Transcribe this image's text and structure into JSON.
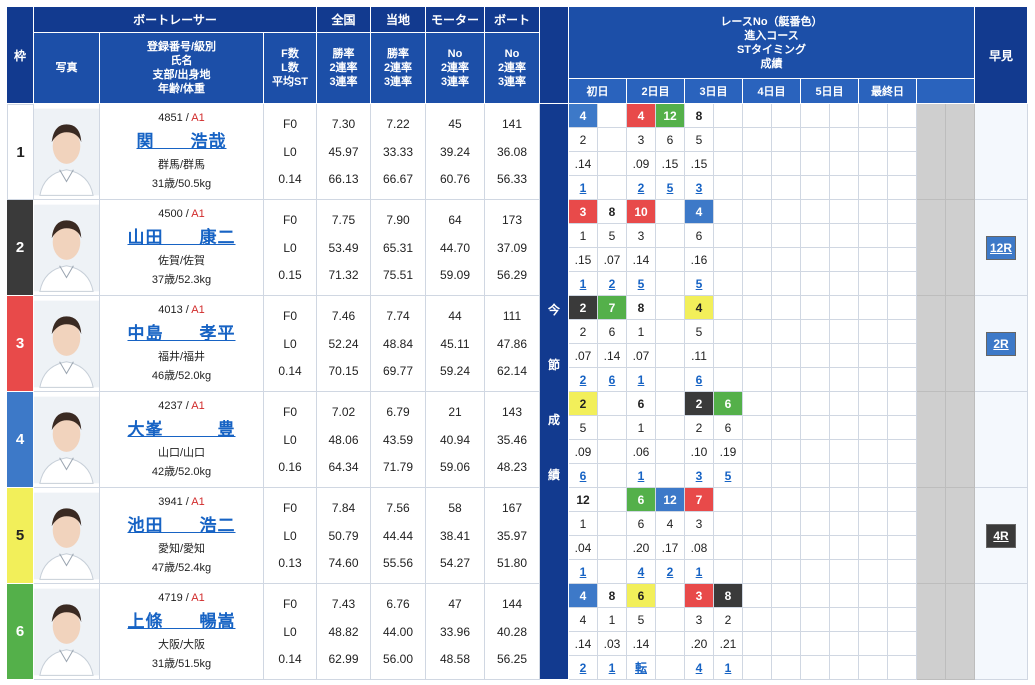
{
  "header": {
    "waku": "枠",
    "boat_racer": "ボートレーサー",
    "photo": "写真",
    "racer_info": [
      "登録番号/級別",
      "氏名",
      "支部/出身地",
      "年齢/体重"
    ],
    "fl": [
      "F数",
      "L数",
      "平均ST"
    ],
    "zenkoku": "全国",
    "touchi": "当地",
    "motor": "モーター",
    "boat": "ボート",
    "rates": [
      "勝率",
      "2連率",
      "3連率"
    ],
    "no_rates": [
      "No",
      "2連率",
      "3連率"
    ],
    "race_title": [
      "レースNo（艇番色）",
      "進入コース",
      "STタイミング",
      "成績"
    ],
    "days": [
      "初日",
      "2日目",
      "3日目",
      "4日目",
      "5日目",
      "最終日"
    ],
    "hayami": "早見",
    "konsetsu": [
      "今",
      "節",
      "成",
      "績"
    ]
  },
  "colors": {
    "1": "#ffffff",
    "2": "#3a3a3a",
    "3": "#e84a4a",
    "4": "#3d79c8",
    "5": "#f2ef5a",
    "6": "#54b04a"
  },
  "racers": [
    {
      "waku": "1",
      "id": "4851",
      "cls": "A1",
      "name": "関　　浩哉",
      "branch": "群馬/群馬",
      "age": "31歳/50.5kg",
      "f": "F0",
      "l": "L0",
      "st": "0.14",
      "zen": [
        "7.30",
        "45.97",
        "66.13"
      ],
      "tou": [
        "7.22",
        "33.33",
        "66.67"
      ],
      "mot": [
        "45",
        "39.24",
        "60.76"
      ],
      "bt": [
        "141",
        "36.08",
        "56.33"
      ],
      "races": [
        {
          "no": "4",
          "c": "2",
          "st": ".14",
          "res": "1"
        },
        {
          "no": "",
          "c": "",
          "st": "",
          "res": ""
        },
        {
          "no": "4",
          "c": "3",
          "st": ".09",
          "res": "2"
        },
        {
          "no": "12",
          "c": "6",
          "st": ".15",
          "res": "5"
        },
        {
          "no": "8",
          "c": "5",
          "st": ".15",
          "res": "3"
        },
        {
          "no": "",
          "c": "",
          "st": "",
          "res": ""
        }
      ],
      "hayami": ""
    },
    {
      "waku": "2",
      "id": "4500",
      "cls": "A1",
      "name": "山田　　康二",
      "branch": "佐賀/佐賀",
      "age": "37歳/52.3kg",
      "f": "F0",
      "l": "L0",
      "st": "0.15",
      "zen": [
        "7.75",
        "53.49",
        "71.32"
      ],
      "tou": [
        "7.90",
        "65.31",
        "75.51"
      ],
      "mot": [
        "64",
        "44.70",
        "59.09"
      ],
      "bt": [
        "173",
        "37.09",
        "56.29"
      ],
      "races": [
        {
          "no": "3",
          "c": "1",
          "st": ".15",
          "res": "1"
        },
        {
          "no": "8",
          "c": "5",
          "st": ".07",
          "res": "2"
        },
        {
          "no": "10",
          "c": "3",
          "st": ".14",
          "res": "5"
        },
        {
          "no": "",
          "c": "",
          "st": "",
          "res": ""
        },
        {
          "no": "4",
          "c": "6",
          "st": ".16",
          "res": "5"
        },
        {
          "no": "",
          "c": "",
          "st": "",
          "res": ""
        }
      ],
      "hayami": "12R"
    },
    {
      "waku": "3",
      "id": "4013",
      "cls": "A1",
      "name": "中島　　孝平",
      "branch": "福井/福井",
      "age": "46歳/52.0kg",
      "f": "F0",
      "l": "L0",
      "st": "0.14",
      "zen": [
        "7.46",
        "52.24",
        "70.15"
      ],
      "tou": [
        "7.74",
        "48.84",
        "69.77"
      ],
      "mot": [
        "44",
        "45.11",
        "59.24"
      ],
      "bt": [
        "111",
        "47.86",
        "62.14"
      ],
      "races": [
        {
          "no": "2",
          "c": "2",
          "st": ".07",
          "res": "2"
        },
        {
          "no": "7",
          "c": "6",
          "st": ".14",
          "res": "6"
        },
        {
          "no": "8",
          "c": "1",
          "st": ".07",
          "res": "1"
        },
        {
          "no": "",
          "c": "",
          "st": "",
          "res": ""
        },
        {
          "no": "4",
          "c": "5",
          "st": ".11",
          "res": "6"
        },
        {
          "no": "",
          "c": "",
          "st": "",
          "res": ""
        }
      ],
      "hayami": "2R"
    },
    {
      "waku": "4",
      "id": "4237",
      "cls": "A1",
      "name": "大峯　　　豊",
      "branch": "山口/山口",
      "age": "42歳/52.0kg",
      "f": "F0",
      "l": "L0",
      "st": "0.16",
      "zen": [
        "7.02",
        "48.06",
        "64.34"
      ],
      "tou": [
        "6.79",
        "43.59",
        "71.79"
      ],
      "mot": [
        "21",
        "40.94",
        "59.06"
      ],
      "bt": [
        "143",
        "35.46",
        "48.23"
      ],
      "races": [
        {
          "no": "2",
          "c": "5",
          "st": ".09",
          "res": "6"
        },
        {
          "no": "",
          "c": "",
          "st": "",
          "res": ""
        },
        {
          "no": "6",
          "c": "1",
          "st": ".06",
          "res": "1"
        },
        {
          "no": "",
          "c": "",
          "st": "",
          "res": ""
        },
        {
          "no": "2",
          "c": "2",
          "st": ".10",
          "res": "3"
        },
        {
          "no": "6",
          "c": "6",
          "st": ".19",
          "res": "5"
        }
      ],
      "hayami": ""
    },
    {
      "waku": "5",
      "id": "3941",
      "cls": "A1",
      "name": "池田　　浩二",
      "branch": "愛知/愛知",
      "age": "47歳/52.4kg",
      "f": "F0",
      "l": "L0",
      "st": "0.13",
      "zen": [
        "7.84",
        "50.79",
        "74.60"
      ],
      "tou": [
        "7.56",
        "44.44",
        "55.56"
      ],
      "mot": [
        "58",
        "38.41",
        "54.27"
      ],
      "bt": [
        "167",
        "35.97",
        "51.80"
      ],
      "races": [
        {
          "no": "12",
          "c": "1",
          "st": ".04",
          "res": "1"
        },
        {
          "no": "",
          "c": "",
          "st": "",
          "res": ""
        },
        {
          "no": "6",
          "c": "6",
          "st": ".20",
          "res": "4"
        },
        {
          "no": "12",
          "c": "4",
          "st": ".17",
          "res": "2"
        },
        {
          "no": "7",
          "c": "3",
          "st": ".08",
          "res": "1"
        },
        {
          "no": "",
          "c": "",
          "st": "",
          "res": ""
        }
      ],
      "hayami": "4R"
    },
    {
      "waku": "6",
      "id": "4719",
      "cls": "A1",
      "name": "上條　　暢嵩",
      "branch": "大阪/大阪",
      "age": "31歳/51.5kg",
      "f": "F0",
      "l": "L0",
      "st": "0.14",
      "zen": [
        "7.43",
        "48.82",
        "62.99"
      ],
      "tou": [
        "6.76",
        "44.00",
        "56.00"
      ],
      "mot": [
        "47",
        "33.96",
        "48.58"
      ],
      "bt": [
        "144",
        "40.28",
        "56.25"
      ],
      "races": [
        {
          "no": "4",
          "c": "4",
          "st": ".14",
          "res": "2"
        },
        {
          "no": "8",
          "c": "1",
          "st": ".03",
          "res": "1"
        },
        {
          "no": "6",
          "c": "5",
          "st": ".14",
          "res": "転"
        },
        {
          "no": "",
          "c": "",
          "st": "",
          "res": ""
        },
        {
          "no": "3",
          "c": "3",
          "st": ".20",
          "res": "4"
        },
        {
          "no": "8",
          "c": "2",
          "st": ".21",
          "res": "1"
        }
      ],
      "hayami": ""
    }
  ],
  "race_colors": [
    [
      "4",
      "",
      "3",
      "6",
      "1",
      ""
    ],
    [
      "3",
      "1",
      "3",
      "",
      "4",
      ""
    ],
    [
      "2",
      "6",
      "1",
      "",
      "5",
      ""
    ],
    [
      "5",
      "",
      "1",
      "",
      "2",
      "6"
    ],
    [
      "1",
      "",
      "6",
      "4",
      "3",
      ""
    ],
    [
      "4",
      "1",
      "5",
      "",
      "3",
      "2"
    ]
  ],
  "hayami_colors": [
    "",
    "#3d79c8",
    "#3d79c8",
    "",
    "#3a3a3a",
    ""
  ]
}
